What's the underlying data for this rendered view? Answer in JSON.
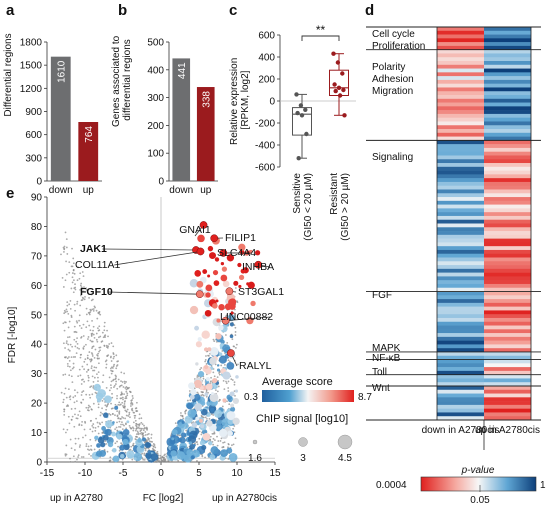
{
  "panels": {
    "a": "a",
    "b": "b",
    "c": "c",
    "d": "d",
    "e": "e"
  },
  "colors": {
    "down": "#6d6e70",
    "up": "#9b1b1e",
    "zero_line": "#bdbdbd"
  },
  "chart_data": [
    {
      "id": "a",
      "type": "bar",
      "categories": [
        "down",
        "up"
      ],
      "values": [
        1610,
        764
      ],
      "ylabel": "Differential regions",
      "ylim": [
        0,
        1800
      ],
      "yticks": [
        0,
        300,
        600,
        900,
        1200,
        1500,
        1800
      ]
    },
    {
      "id": "b",
      "type": "bar",
      "categories": [
        "down",
        "up"
      ],
      "values": [
        441,
        338
      ],
      "ylabel": "Genes associated to differential regions",
      "ylim": [
        0,
        500
      ],
      "yticks": [
        0,
        100,
        200,
        300,
        400,
        500
      ]
    },
    {
      "id": "c",
      "type": "box",
      "ylabel": "Relative expression [RPKM, log2]",
      "ylim": [
        -600,
        600
      ],
      "yticks": [
        -600,
        -400,
        -200,
        0,
        200,
        400,
        600
      ],
      "significance": "**",
      "groups": [
        {
          "label": "Sensitive (GI50 < 20 µM)",
          "label_line1": "Sensitive",
          "label_line2": "(GI50 < 20 µM)",
          "min": -520,
          "q1": -310,
          "median": -120,
          "q3": -60,
          "max": 60,
          "points": [
            60,
            -40,
            -80,
            -110,
            -130,
            -300,
            -520
          ]
        },
        {
          "label": "Resistant (GI50 > 20 µM)",
          "label_line1": "Resistant",
          "label_line2": "(GI50 > 20 µM)",
          "min": -130,
          "q1": 50,
          "median": 120,
          "q3": 280,
          "max": 430,
          "points": [
            430,
            350,
            250,
            150,
            120,
            100,
            90,
            50,
            -130
          ]
        }
      ]
    },
    {
      "id": "d",
      "type": "heatmap",
      "columns": [
        "down in A2780cis",
        "up in A2780cis"
      ],
      "categories": [
        {
          "label": "Cell cycle Proliferation",
          "lines": [
            "Cell cycle",
            "Proliferation"
          ],
          "rows": 6
        },
        {
          "label": "Polarity Adhesion Migration",
          "lines": [
            "Polarity",
            "Adhesion",
            "Migration"
          ],
          "rows": 24
        },
        {
          "label": "Signaling",
          "lines": [
            "Signaling"
          ],
          "rows": 40
        },
        {
          "label": "FGF",
          "lines": [
            "FGF"
          ],
          "rows": 16
        },
        {
          "label": "MAPK",
          "lines": [
            "MAPK"
          ],
          "rows": 2
        },
        {
          "label": "NF-κB",
          "lines": [
            "NF-κB"
          ],
          "rows": 4
        },
        {
          "label": "Toll",
          "lines": [
            "Toll"
          ],
          "rows": 3
        },
        {
          "label": "Wnt",
          "lines": [
            "Wnt"
          ],
          "rows": 9
        }
      ],
      "legend_title": "p-value",
      "legend_ticks": [
        "0.0004",
        "0.05",
        "1"
      ]
    },
    {
      "id": "e",
      "type": "scatter",
      "xlabel": "FC [log2]",
      "xlabel_left": "up in A2780",
      "xlabel_right": "up in A2780cis",
      "ylabel": "FDR [-log10]",
      "xlim": [
        -15,
        15
      ],
      "ylim": [
        0,
        90
      ],
      "xticks": [
        -15,
        -10,
        -5,
        0,
        5,
        10,
        15
      ],
      "yticks": [
        0,
        10,
        20,
        30,
        40,
        50,
        60,
        70,
        80,
        90
      ],
      "highlight_genes": [
        {
          "name": "GNAI1",
          "x": 5.6,
          "y": 80.5,
          "bold": false
        },
        {
          "name": "FILIP1",
          "x": 7.0,
          "y": 76.0,
          "bold": false
        },
        {
          "name": "JAK1",
          "x": 4.6,
          "y": 72.0,
          "bold": true
        },
        {
          "name": "SLC4A4",
          "x": 8.2,
          "y": 71.0,
          "bold": false
        },
        {
          "name": "COL11A1",
          "x": 5.2,
          "y": 71.5,
          "bold": false
        },
        {
          "name": "INHBA",
          "x": 12.8,
          "y": 67.0,
          "bold": false
        },
        {
          "name": "FGF10",
          "x": 5.1,
          "y": 57.0,
          "bold": true
        },
        {
          "name": "ST3GAL1",
          "x": 9.0,
          "y": 58.0,
          "bold": false
        },
        {
          "name": "LINC00882",
          "x": 8.5,
          "y": 48.0,
          "bold": false
        },
        {
          "name": "RALYL",
          "x": 9.2,
          "y": 37.0,
          "bold": false
        }
      ],
      "colorbar_title": "Average score",
      "colorbar_ticks": [
        "0.3",
        "8.7"
      ],
      "size_title": "ChIP signal [log10]",
      "size_ticks": [
        "1.6",
        "3",
        "4.5"
      ]
    }
  ]
}
